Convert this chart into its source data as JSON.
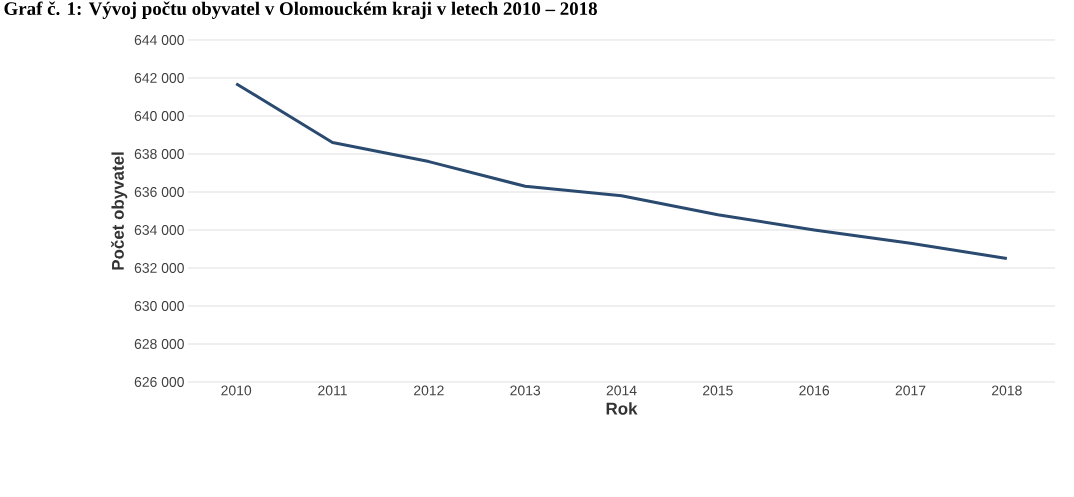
{
  "chart_data": {
    "type": "line",
    "title": "Graf č. 1: Vývoj počtu obyvatel v Olomouckém kraji v letech 2010 – 2018",
    "xlabel": "Rok",
    "ylabel": "Počet obyvatel",
    "categories": [
      "2010",
      "2011",
      "2012",
      "2013",
      "2014",
      "2015",
      "2016",
      "2017",
      "2018"
    ],
    "series": [
      {
        "color": "#2b4a70",
        "values": [
          641700,
          638600,
          637600,
          636300,
          635800,
          634800,
          634000,
          633300,
          632500
        ]
      }
    ],
    "ylim": [
      626000,
      644000
    ],
    "yticks": [
      {
        "value": 626000,
        "label": "626 000"
      },
      {
        "value": 628000,
        "label": "628 000"
      },
      {
        "value": 630000,
        "label": "630 000"
      },
      {
        "value": 632000,
        "label": "632 000"
      },
      {
        "value": 634000,
        "label": "634 000"
      },
      {
        "value": 636000,
        "label": "636 000"
      },
      {
        "value": 638000,
        "label": "638 000"
      },
      {
        "value": 640000,
        "label": "640 000"
      },
      {
        "value": 642000,
        "label": "642 000"
      },
      {
        "value": 644000,
        "label": "644 000"
      }
    ],
    "grid": "y",
    "marker": "none",
    "line_style": "solid"
  }
}
